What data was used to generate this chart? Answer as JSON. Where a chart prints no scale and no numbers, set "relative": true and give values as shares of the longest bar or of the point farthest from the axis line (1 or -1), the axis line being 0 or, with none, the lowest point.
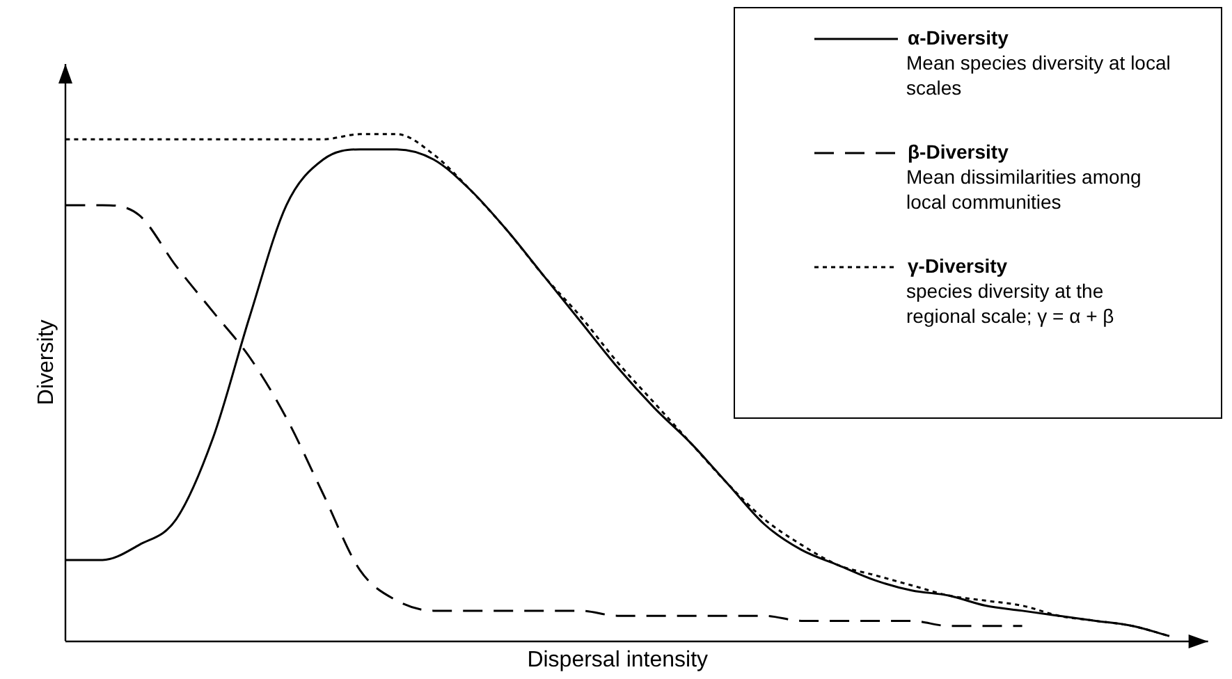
{
  "chart_data": {
    "type": "line",
    "relative": true,
    "xlabel": "Dispersal intensity",
    "ylabel": "Diversity",
    "categories": [
      null,
      null,
      null,
      null,
      null,
      null,
      null,
      null,
      null,
      null,
      null,
      null,
      null,
      null,
      null,
      null,
      null,
      null,
      null,
      null,
      null,
      null,
      null,
      null,
      null,
      null,
      null,
      null,
      null,
      null,
      null
    ],
    "series": [
      {
        "name": "α-Diversity",
        "color": "#000000",
        "line_style": "solid",
        "values": [
          0.16,
          0.16,
          0.19,
          0.24,
          0.4,
          0.64,
          0.86,
          0.95,
          0.97,
          0.97,
          0.95,
          0.89,
          0.81,
          0.72,
          0.63,
          0.54,
          0.46,
          0.39,
          0.31,
          0.23,
          0.18,
          0.15,
          0.12,
          0.1,
          0.09,
          0.07,
          0.06,
          0.05,
          0.04,
          0.03,
          0.01
        ]
      },
      {
        "name": "β-Diversity",
        "color": "#000000",
        "line_style": "dashed",
        "values": [
          0.86,
          0.86,
          0.84,
          0.74,
          0.65,
          0.56,
          0.44,
          0.29,
          0.14,
          0.08,
          0.06,
          0.06,
          0.06,
          0.06,
          0.06,
          0.05,
          0.05,
          0.05,
          0.05,
          0.05,
          0.04,
          0.04,
          0.04,
          0.04,
          0.03,
          0.03,
          0.03,
          null,
          null,
          null,
          null
        ]
      },
      {
        "name": "γ-Diversity",
        "color": "#000000",
        "line_style": "dotted",
        "values": [
          0.99,
          0.99,
          0.99,
          0.99,
          0.99,
          0.99,
          0.99,
          0.99,
          1.0,
          1.0,
          0.96,
          0.89,
          0.81,
          0.72,
          0.64,
          0.55,
          0.47,
          0.39,
          0.31,
          0.24,
          0.19,
          0.15,
          0.13,
          0.11,
          0.09,
          0.08,
          0.07,
          0.05,
          0.04,
          0.03,
          0.01
        ]
      }
    ],
    "annotations": [
      "Mean species diversity at local scales",
      "Mean dissimilarities among local communities",
      "species diversity at the regional scale; γ = α + β"
    ],
    "legend": "top right",
    "grid": false,
    "marker": "none"
  }
}
